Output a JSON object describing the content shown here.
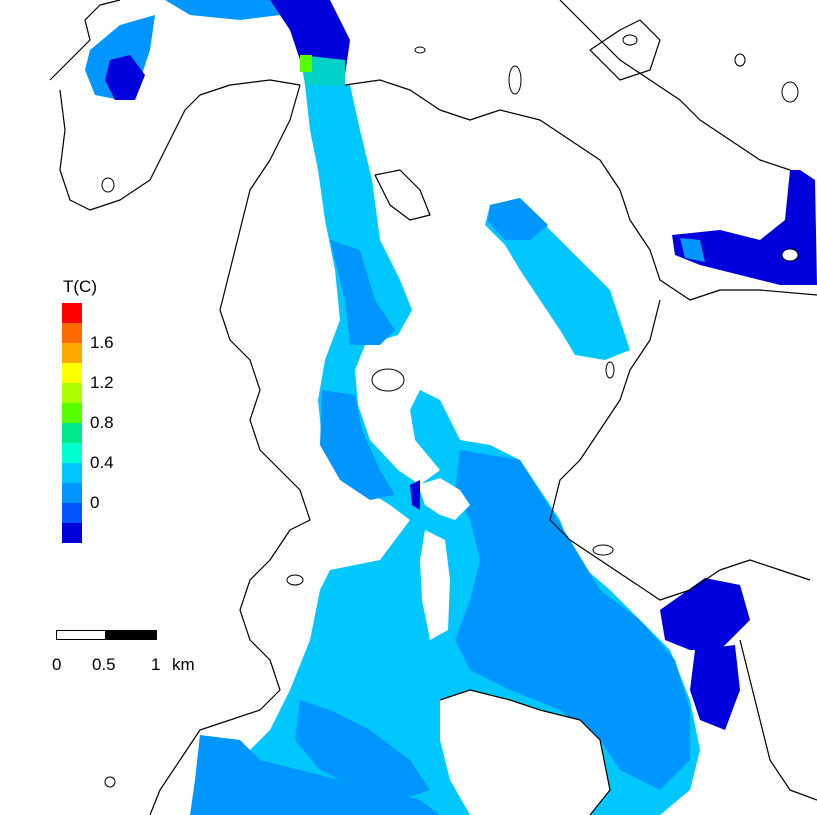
{
  "legend": {
    "title": "T(C)",
    "ticks": [
      "1.6",
      "1.2",
      "0.8",
      "0.4",
      "0"
    ],
    "colors": [
      "#ff0000",
      "#ff6a00",
      "#ffaa00",
      "#ffff00",
      "#aaff00",
      "#55ff00",
      "#00e88c",
      "#00ffd0",
      "#00c8ff",
      "#0096ff",
      "#0055ff",
      "#0000dd"
    ]
  },
  "scale_bar": {
    "labels": [
      "0",
      "0.5",
      "1"
    ],
    "unit": "km"
  },
  "palette": {
    "deep": "#0000dd",
    "cold": "#0078ff",
    "mid": "#00c0ff",
    "warm": "#00d2c8",
    "land": "#ffffff",
    "coastline": "#000000"
  }
}
